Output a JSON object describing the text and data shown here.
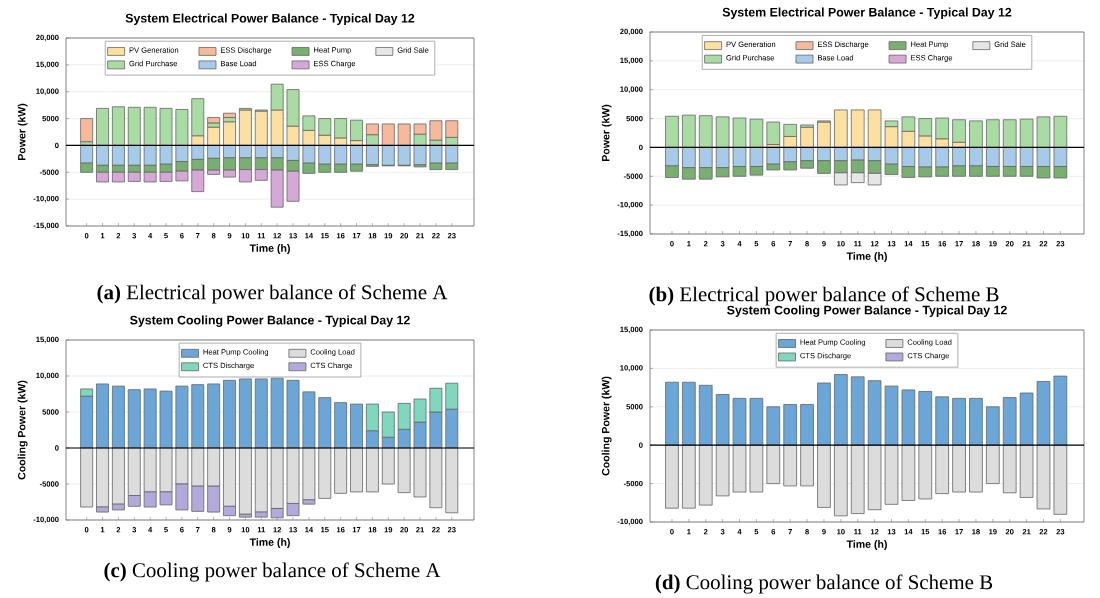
{
  "chart_data": [
    {
      "type": "bar",
      "stacked": true,
      "title": "System Electrical Power Balance - Typical Day 12",
      "xlabel": "Time (h)",
      "ylabel": "Power (kW)",
      "categories": [
        "0",
        "1",
        "2",
        "3",
        "4",
        "5",
        "6",
        "7",
        "8",
        "9",
        "10",
        "11",
        "12",
        "13",
        "14",
        "15",
        "16",
        "17",
        "18",
        "19",
        "20",
        "21",
        "22",
        "23"
      ],
      "series": [
        {
          "name": "PV Generation",
          "color": "#fde0a0",
          "values": [
            0,
            0,
            0,
            0,
            0,
            0,
            null,
            1800,
            3400,
            4400,
            6600,
            6400,
            6600,
            3600,
            2800,
            1900,
            1400,
            900,
            0,
            0,
            0,
            0,
            0,
            0
          ]
        },
        {
          "name": "Grid Purchase",
          "color": "#a9dca3",
          "values": [
            700,
            6900,
            7200,
            7100,
            7100,
            6900,
            6700,
            6900,
            800,
            800,
            300,
            200,
            4800,
            6800,
            2700,
            3100,
            3600,
            3800,
            2000,
            0,
            0,
            2100,
            1000,
            1500
          ]
        },
        {
          "name": "ESS Discharge",
          "color": "#f7b99a",
          "values": [
            4300,
            0,
            0,
            0,
            0,
            0,
            0,
            0,
            1000,
            800,
            0,
            0,
            0,
            0,
            0,
            0,
            0,
            0,
            2000,
            4000,
            4000,
            1900,
            3600,
            3100
          ]
        },
        {
          "name": "Base Load",
          "color": "#a6cbea",
          "values": [
            -3300,
            -3700,
            -3700,
            -3700,
            -3700,
            -3500,
            -3000,
            -2600,
            -2400,
            -2300,
            -2300,
            -2300,
            -2300,
            -2800,
            -3300,
            -3500,
            -3500,
            -3500,
            -3600,
            -3700,
            -3700,
            -3600,
            -3300,
            -3300
          ]
        },
        {
          "name": "Heat Pump",
          "color": "#78b070",
          "values": [
            -1700,
            -1300,
            -1300,
            -1300,
            -1300,
            -1500,
            -1800,
            -2000,
            -2200,
            -2300,
            -2200,
            -2200,
            -2300,
            -2000,
            -1900,
            -1500,
            -1500,
            -1300,
            -300,
            -100,
            -100,
            -400,
            -1200,
            -1200
          ]
        },
        {
          "name": "ESS Charge",
          "color": "#d6a8d8",
          "values": [
            0,
            -1800,
            -1800,
            -1700,
            -1800,
            -1700,
            -1800,
            -4000,
            -800,
            -1300,
            -2300,
            -2000,
            -6900,
            -5600,
            0,
            0,
            0,
            0,
            0,
            0,
            0,
            0,
            0,
            0
          ]
        },
        {
          "name": "Grid Sale",
          "color": "#e6e6e6",
          "values": [
            0,
            0,
            0,
            0,
            0,
            0,
            0,
            0,
            0,
            0,
            0,
            0,
            0,
            0,
            0,
            0,
            0,
            0,
            0,
            0,
            0,
            0,
            0,
            0
          ]
        }
      ],
      "ylim": [
        -15000,
        20000
      ],
      "yticks": [
        {
          "value": -15000,
          "label": "-15,000"
        },
        {
          "value": -10000,
          "label": "-10,000"
        },
        -5000,
        0,
        5000,
        {
          "value": 10000,
          "label": "10,000"
        },
        {
          "value": 15000,
          "label": "15,000"
        },
        {
          "value": 20000,
          "label": "20,000"
        }
      ],
      "grid": "y",
      "legend": "top",
      "ref_lines": [
        {
          "axis": "y",
          "value": 0,
          "color": "#000000"
        }
      ],
      "annotations": [
        "**(a)** Electrical power balance of Scheme A"
      ]
    },
    {
      "type": "bar",
      "stacked": true,
      "title": "System Electrical Power Balance - Typical Day 12",
      "xlabel": "Time (h)",
      "ylabel": "Power (kW)",
      "categories": [
        "0",
        "1",
        "2",
        "3",
        "4",
        "5",
        "6",
        "7",
        "8",
        "9",
        "10",
        "11",
        "12",
        "13",
        "14",
        "15",
        "16",
        "17",
        "18",
        "19",
        "20",
        "21",
        "22",
        "23"
      ],
      "series": [
        {
          "name": "PV Generation",
          "color": "#fde0a0",
          "values": [
            0,
            0,
            0,
            0,
            0,
            0,
            500,
            1900,
            3500,
            4400,
            6500,
            6500,
            6500,
            3600,
            2800,
            2000,
            1500,
            900,
            null,
            0,
            0,
            0,
            0,
            0
          ]
        },
        {
          "name": "Grid Purchase",
          "color": "#a9dca3",
          "values": [
            5400,
            5600,
            5500,
            5300,
            5100,
            4900,
            3900,
            2100,
            400,
            200,
            0,
            0,
            0,
            1000,
            2500,
            3000,
            3600,
            3900,
            4600,
            4800,
            4800,
            4900,
            5300,
            5400
          ]
        },
        {
          "name": "ESS Discharge",
          "color": "#f7b99a",
          "values": [
            0,
            0,
            0,
            0,
            0,
            0,
            0,
            0,
            0,
            0,
            0,
            0,
            0,
            0,
            0,
            0,
            0,
            0,
            0,
            0,
            0,
            0,
            0,
            0
          ]
        },
        {
          "name": "Base Load",
          "color": "#a6cbea",
          "values": [
            -3200,
            -3500,
            -3500,
            -3500,
            -3300,
            -3300,
            -2900,
            -2500,
            -2300,
            -2300,
            -2300,
            -2200,
            -2300,
            -2900,
            -3300,
            -3400,
            -3400,
            -3200,
            -3200,
            -3300,
            -3300,
            -3300,
            -3300,
            -3300
          ]
        },
        {
          "name": "Heat Pump",
          "color": "#78b070",
          "values": [
            -2000,
            -2000,
            -2000,
            -1600,
            -1700,
            -1500,
            -1000,
            -1400,
            -1300,
            -2200,
            -2100,
            -2200,
            -2200,
            -1800,
            -1900,
            -1700,
            -1600,
            -1800,
            -1800,
            -1700,
            -1700,
            -1700,
            -2000,
            -2000
          ]
        },
        {
          "name": "ESS Charge",
          "color": "#d6a8d8",
          "values": [
            0,
            0,
            0,
            0,
            0,
            0,
            0,
            0,
            0,
            0,
            0,
            0,
            0,
            0,
            0,
            0,
            0,
            0,
            0,
            0,
            0,
            0,
            0,
            0
          ]
        },
        {
          "name": "Grid Sale",
          "color": "#e6e6e6",
          "values": [
            0,
            0,
            0,
            0,
            0,
            0,
            0,
            0,
            0,
            0,
            -2100,
            -1700,
            -2000,
            0,
            0,
            0,
            0,
            0,
            0,
            0,
            0,
            0,
            0,
            0
          ]
        }
      ],
      "ylim": [
        -15000,
        20000
      ],
      "yticks": [
        {
          "value": -15000,
          "label": "-15,000"
        },
        {
          "value": -10000,
          "label": "-10,000"
        },
        -5000,
        0,
        5000,
        {
          "value": 10000,
          "label": "10,000"
        },
        {
          "value": 15000,
          "label": "15,000"
        },
        {
          "value": 20000,
          "label": "20,000"
        }
      ],
      "grid": "y",
      "legend": "top",
      "ref_lines": [
        {
          "axis": "y",
          "value": 0,
          "color": "#000000"
        }
      ],
      "annotations": [
        "**(b)** Electrical power balance of Scheme B"
      ]
    },
    {
      "type": "bar",
      "stacked": true,
      "title": "System Cooling Power Balance - Typical Day 12",
      "xlabel": "Time (h)",
      "ylabel": "Cooling Power (kW)",
      "categories": [
        "0",
        "1",
        "2",
        "3",
        "4",
        "5",
        "6",
        "7",
        "8",
        "9",
        "10",
        "11",
        "12",
        "13",
        "14",
        "15",
        "16",
        "17",
        "18",
        "19",
        "20",
        "21",
        "22",
        "23"
      ],
      "series": [
        {
          "name": "Heat Pump Cooling",
          "color": "#6aa7d8",
          "values": [
            7200,
            8900,
            8600,
            8100,
            8200,
            7900,
            8600,
            8800,
            8900,
            9400,
            9600,
            9600,
            9700,
            9400,
            7800,
            7000,
            6300,
            6100,
            2400,
            1500,
            2600,
            3600,
            5000,
            5400
          ]
        },
        {
          "name": "CTS Discharge",
          "color": "#7fd8bd",
          "values": [
            1000,
            0,
            0,
            0,
            0,
            0,
            0,
            0,
            0,
            0,
            0,
            0,
            0,
            0,
            0,
            0,
            0,
            0,
            3700,
            3500,
            3600,
            3200,
            3300,
            3600
          ]
        },
        {
          "name": "Cooling Load",
          "color": "#dcdcdc",
          "values": [
            -8200,
            -8200,
            -7800,
            -6600,
            -6100,
            -6100,
            -5000,
            -5300,
            -5300,
            -8100,
            -9200,
            -8900,
            -8400,
            -7700,
            -7200,
            -7000,
            -6300,
            -6100,
            -6100,
            -5000,
            -6200,
            -6800,
            -8300,
            -9000
          ]
        },
        {
          "name": "CTS Charge",
          "color": "#b3a9dc",
          "values": [
            0,
            -700,
            -800,
            -1500,
            -2100,
            -1800,
            -3600,
            -3500,
            -3600,
            -1300,
            -400,
            -700,
            -1300,
            -1700,
            -600,
            0,
            0,
            0,
            0,
            0,
            0,
            0,
            0,
            0
          ]
        }
      ],
      "ylim": [
        -10000,
        15000
      ],
      "yticks": [
        {
          "value": -10000,
          "label": "-10,000"
        },
        -5000,
        0,
        5000,
        {
          "value": 10000,
          "label": "10,000"
        },
        {
          "value": 15000,
          "label": "15,000"
        }
      ],
      "grid": "y",
      "legend": "top",
      "ref_lines": [
        {
          "axis": "y",
          "value": 0,
          "color": "#000000"
        }
      ],
      "annotations": [
        "**(c)** Cooling power balance of Scheme A"
      ]
    },
    {
      "type": "bar",
      "stacked": true,
      "title": "System Cooling Power Balance - Typical Day 12",
      "xlabel": "Time (h)",
      "ylabel": "Cooling Power (kW)",
      "categories": [
        "0",
        "1",
        "2",
        "3",
        "4",
        "5",
        "6",
        "7",
        "8",
        "9",
        "10",
        "11",
        "12",
        "13",
        "14",
        "15",
        "16",
        "17",
        "18",
        "19",
        "20",
        "21",
        "22",
        "23"
      ],
      "series": [
        {
          "name": "Heat Pump Cooling",
          "color": "#6aa7d8",
          "values": [
            8200,
            8200,
            7800,
            6600,
            6100,
            6100,
            5000,
            5300,
            5300,
            8100,
            9200,
            8900,
            8400,
            7700,
            7200,
            7000,
            6300,
            6100,
            6100,
            5000,
            6200,
            6800,
            8300,
            9000
          ]
        },
        {
          "name": "CTS Discharge",
          "color": "#7fd8bd",
          "values": [
            0,
            0,
            0,
            0,
            0,
            0,
            0,
            0,
            0,
            0,
            0,
            0,
            0,
            0,
            0,
            0,
            0,
            0,
            0,
            0,
            0,
            0,
            0,
            0
          ]
        },
        {
          "name": "Cooling Load",
          "color": "#dcdcdc",
          "values": [
            -8200,
            -8200,
            -7800,
            -6600,
            -6100,
            -6100,
            -5000,
            -5300,
            -5300,
            -8100,
            -9200,
            -8900,
            -8400,
            -7700,
            -7200,
            -7000,
            -6300,
            -6100,
            -6100,
            -5000,
            -6200,
            -6800,
            -8300,
            -9000
          ]
        },
        {
          "name": "CTS Charge",
          "color": "#b3a9dc",
          "values": [
            0,
            0,
            0,
            0,
            0,
            0,
            0,
            0,
            0,
            0,
            0,
            0,
            0,
            0,
            0,
            0,
            0,
            0,
            0,
            0,
            0,
            0,
            0,
            0
          ]
        }
      ],
      "ylim": [
        -10000,
        15000
      ],
      "yticks": [
        {
          "value": -10000,
          "label": "-10,000"
        },
        -5000,
        0,
        5000,
        {
          "value": 10000,
          "label": "10,000"
        },
        {
          "value": 15000,
          "label": "15,000"
        }
      ],
      "grid": "y",
      "legend": "top",
      "ref_lines": [
        {
          "axis": "y",
          "value": 0,
          "color": "#000000"
        }
      ],
      "annotations": [
        "**(d)** Cooling power balance of Scheme B"
      ]
    }
  ]
}
